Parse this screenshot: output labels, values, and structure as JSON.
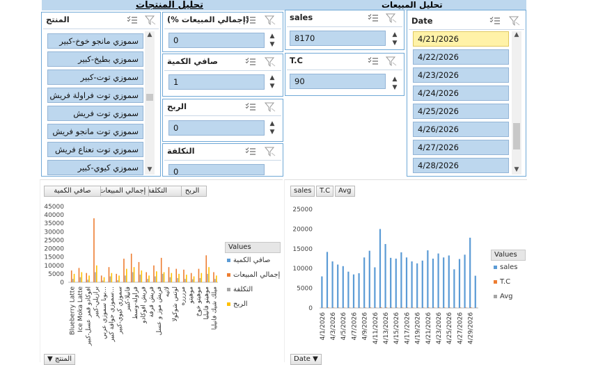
{
  "headers": {
    "product_analysis": "تحليل المنتجات",
    "sales_analysis": "تحليل المبيعات"
  },
  "slicers": {
    "product": {
      "title": "المنتج",
      "items": [
        "سموزي مانجو خوخ-كبير",
        "سموزي بطيخ-كبير",
        "سموزي توت-كبير",
        "سموزي توت فراولة فريش",
        "سموزي توت فريش",
        "سموزي توت مانجو فريش",
        "سموزي توت نعناع فريش",
        "سموزي كيوي-كبير"
      ]
    },
    "total_sales_pct": {
      "title": "(% إجمالي المبيعات)",
      "value": "0"
    },
    "net_qty": {
      "title": "صافي الكمية",
      "value": "1"
    },
    "profit": {
      "title": "الربح",
      "value": "0"
    },
    "cost": {
      "title": "التكلفة",
      "value": "0"
    },
    "sales": {
      "title": "sales",
      "value": "8170"
    },
    "tc": {
      "title": "T.C",
      "value": "90"
    },
    "date": {
      "title": "Date",
      "items": [
        "4/21/2026",
        "4/22/2026",
        "4/23/2026",
        "4/24/2026",
        "4/25/2026",
        "4/26/2026",
        "4/27/2026",
        "4/28/2026"
      ],
      "selected": 0
    }
  },
  "left_chart": {
    "tabs": [
      "الربح",
      "التكلفة",
      "إجمالي المبيعات",
      "صافي الكمية"
    ],
    "legend_title": "Values",
    "legend": [
      "صافي الكمية",
      "إجمالي المبيعات",
      "التكلفة",
      "الربح"
    ],
    "filter_label": "المنتج",
    "colors": [
      "#5b9bd5",
      "#ed7d31",
      "#a5a5a5",
      "#ffc000"
    ]
  },
  "right_chart": {
    "tabs": [
      "sales",
      "T.C",
      "Avg"
    ],
    "legend_title": "Values",
    "legend": [
      "sales",
      "T.C",
      "Avg"
    ],
    "filter_label": "Date",
    "colors": [
      "#5b9bd5",
      "#ed7d31",
      "#a5a5a5"
    ]
  },
  "chart_data": [
    {
      "type": "bar",
      "title": "",
      "ylim": [
        0,
        45000
      ],
      "yticks": [
        0,
        5000,
        10000,
        15000,
        20000,
        25000,
        30000,
        35000,
        40000,
        45000
      ],
      "categories": [
        "Blueberry Latte",
        "Ice Moka Latte",
        "افوكادو قمر عسل-كبير",
        "برازيلي-كبير",
        "بوبا سموزي عربي",
        "سموزي جوافة كبير",
        "سموزي كيوي-كبير",
        "فانيلا-كبير",
        "فراولة-وسط",
        "فريش افوكادو",
        "فريش قرفة",
        "فريش موز و عسل",
        "لاتيه",
        "لوتس شوكولا",
        "ميكس بيري",
        "مرررره",
        "موهيتو",
        "موهيتو خوخ",
        "موهيتو فانيليا",
        "ميلك شيك فانيليا"
      ],
      "category_labels_visible": [
        "Blueberry Latte",
        "Ice Moka Latte",
        "افوكادو قمر عسل-كبير",
        "برازيلي-كبير",
        "بوبا سموزي عربي...",
        "سموزي جوافة كبير...",
        "سموزي كيوي-كبير",
        "فانيلا-كبير",
        "فراولة-وسط",
        "فريش افوكادو",
        "فريش قرفة",
        "فريش موز و عسل",
        "لاتيه",
        "لوتس شوكولا",
        "مرررره",
        "موهيتو",
        "موهيتو خوخ",
        "موهيتو فانيليا",
        "ميلك شيك فانيليا"
      ],
      "series": [
        {
          "name": "صافي الكمية",
          "values": [
            50,
            60,
            80,
            40,
            70,
            90,
            60,
            50,
            40,
            60,
            50,
            70,
            80,
            60,
            50,
            40,
            60,
            70,
            50,
            60
          ]
        },
        {
          "name": "إجمالي المبيعات",
          "values": [
            7000,
            8500,
            5500,
            38000,
            4000,
            9000,
            5000,
            14000,
            17000,
            12000,
            6000,
            10000,
            14500,
            9000,
            8000,
            7500,
            5500,
            8000,
            16000,
            6000
          ]
        },
        {
          "name": "التكلفة",
          "values": [
            2000,
            3000,
            1500,
            6000,
            1000,
            3500,
            1200,
            4000,
            6000,
            4500,
            2000,
            3500,
            5000,
            3000,
            2500,
            2000,
            1800,
            2500,
            5000,
            2000
          ]
        },
        {
          "name": "الربح",
          "values": [
            5000,
            6000,
            4000,
            10000,
            3000,
            5500,
            4000,
            8000,
            9000,
            7000,
            4000,
            6500,
            6000,
            5500,
            5000,
            4500,
            3500,
            5500,
            9000,
            4000
          ]
        }
      ]
    },
    {
      "type": "bar",
      "title": "",
      "ylim": [
        0,
        25000
      ],
      "yticks": [
        0,
        5000,
        10000,
        15000,
        20000,
        25000
      ],
      "categories": [
        "4/1/2026",
        "4/2/2026",
        "4/3/2026",
        "4/4/2026",
        "4/5/2026",
        "4/6/2026",
        "4/7/2026",
        "4/8/2026",
        "4/9/2026",
        "4/10/2026",
        "4/11/2026",
        "4/12/2026",
        "4/13/2026",
        "4/14/2026",
        "4/15/2026",
        "4/16/2026",
        "4/17/2026",
        "4/18/2026",
        "4/19/2026",
        "4/20/2026",
        "4/21/2026",
        "4/22/2026",
        "4/23/2026",
        "4/24/2026",
        "4/25/2026",
        "4/26/2026",
        "4/27/2026",
        "4/28/2026",
        "4/29/2026",
        "4/30/2026"
      ],
      "tick_labels_visible": [
        "4/1/2026",
        "4/3/2026",
        "4/5/2026",
        "4/7/2026",
        "4/9/2026",
        "4/11/2026",
        "4/13/2026",
        "4/15/2026",
        "4/17/2026",
        "4/19/2026",
        "4/21/2026",
        "4/23/2026",
        "4/25/2026",
        "4/27/2026",
        "4/29/2026"
      ],
      "series": [
        {
          "name": "sales",
          "values": [
            8000,
            14200,
            11800,
            11000,
            10600,
            9200,
            8500,
            8800,
            12800,
            14500,
            10300,
            20000,
            16200,
            12700,
            12500,
            14100,
            12800,
            11800,
            11300,
            12000,
            14600,
            12500,
            13800,
            12800,
            13300,
            9800,
            12400,
            13500,
            17800,
            8170
          ]
        },
        {
          "name": "T.C",
          "values": [
            90,
            150,
            120,
            110,
            115,
            100,
            95,
            100,
            130,
            150,
            110,
            200,
            170,
            130,
            130,
            140,
            130,
            120,
            115,
            120,
            150,
            130,
            140,
            130,
            135,
            100,
            125,
            140,
            180,
            90
          ]
        },
        {
          "name": "Avg",
          "values": [
            89,
            95,
            98,
            100,
            92,
            92,
            89,
            88,
            98,
            97,
            94,
            100,
            95,
            98,
            96,
            101,
            98,
            98,
            98,
            100,
            97,
            96,
            99,
            98,
            99,
            98,
            99,
            96,
            99,
            91
          ]
        }
      ]
    }
  ]
}
